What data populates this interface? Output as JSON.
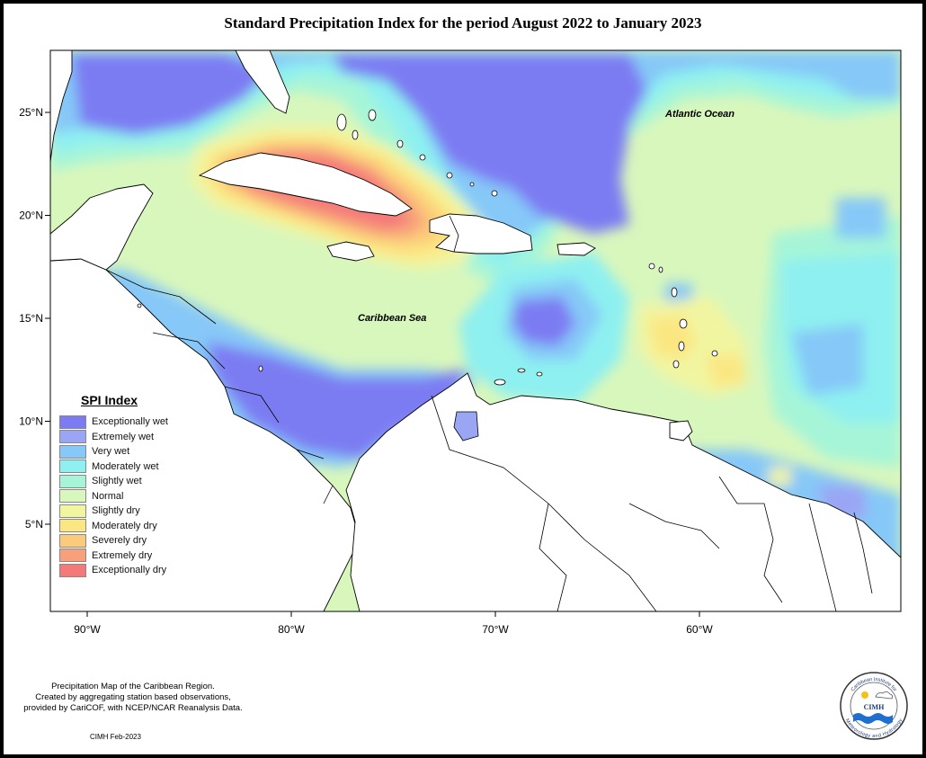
{
  "title": "Standard Precipitation Index for the period August 2022 to January 2023",
  "map": {
    "lon_ticks": [
      {
        "lon": -90,
        "label": "90°W"
      },
      {
        "lon": -80,
        "label": "80°W"
      },
      {
        "lon": -70,
        "label": "70°W"
      },
      {
        "lon": -60,
        "label": "60°W"
      }
    ],
    "lat_ticks": [
      {
        "lat": 25,
        "label": "25°N"
      },
      {
        "lat": 20,
        "label": "20°N"
      },
      {
        "lat": 15,
        "label": "15°N"
      },
      {
        "lat": 10,
        "label": "10°N"
      },
      {
        "lat": 5,
        "label": "5°N"
      }
    ],
    "labels": {
      "atlantic": "Atlantic Ocean",
      "caribbean": "Caribbean Sea"
    },
    "colors": {
      "exceptionally_wet": "#7b7cf2",
      "extremely_wet": "#9aa6f4",
      "very_wet": "#86c8f8",
      "moderately_wet": "#8ef0f0",
      "slightly_wet": "#a6f5d8",
      "normal": "#d8f7bc",
      "slightly_dry": "#f2f5a0",
      "moderately_dry": "#fbe782",
      "severely_dry": "#fbca7a",
      "extremely_dry": "#f8a07a",
      "exceptionally_dry": "#f47a7a"
    }
  },
  "legend": {
    "title": "SPI Index",
    "items": [
      {
        "label": "Exceptionally wet",
        "color": "#7b7cf2"
      },
      {
        "label": "Extremely wet",
        "color": "#9aa6f4"
      },
      {
        "label": "Very wet",
        "color": "#86c8f8"
      },
      {
        "label": "Moderately wet",
        "color": "#8ef0f0"
      },
      {
        "label": "Slightly wet",
        "color": "#a6f5d8"
      },
      {
        "label": "Normal",
        "color": "#d8f7bc"
      },
      {
        "label": "Slightly dry",
        "color": "#f2f5a0"
      },
      {
        "label": "Moderately dry",
        "color": "#fbe782"
      },
      {
        "label": "Severely dry",
        "color": "#fbca7a"
      },
      {
        "label": "Extremely dry",
        "color": "#f8a07a"
      },
      {
        "label": "Exceptionally dry",
        "color": "#f47a7a"
      }
    ]
  },
  "footnote": {
    "line1": "Precipitation Map of the Caribbean Region.",
    "line2": "Created by aggregating station based observations,",
    "line3": "provided by CariCOF, with NCEP/NCAR Reanalysis Data."
  },
  "credit": "CIMH Feb-2023",
  "logo": {
    "text": "CIMH",
    "ring_top": "Caribbean Institute for",
    "ring_bottom": "Meteorology and Hydrology"
  }
}
